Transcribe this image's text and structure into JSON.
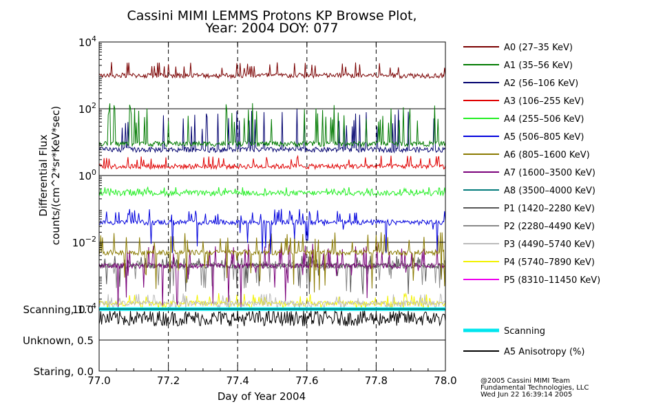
{
  "chart_data": [
    {
      "type": "line",
      "title": "Cassini MIMI LEMMS Protons KP Browse Plot,",
      "subtitle": "Year: 2004 DOY: 077",
      "xlabel": "Day of Year 2004",
      "ylabel": "Differential Flux",
      "ylabel2": "counts/(cm^2*sr*KeV*sec)",
      "y_scale": "log",
      "xlim": [
        77.0,
        78.0
      ],
      "ylim": [
        0.0001,
        10000
      ],
      "x_ticks": [
        "77.0",
        "77.2",
        "77.4",
        "77.6",
        "77.8",
        "78.0"
      ],
      "y_ticks": [
        {
          "base": "10",
          "exp": "4"
        },
        {
          "base": "10",
          "exp": "2"
        },
        {
          "base": "10",
          "exp": "0"
        },
        {
          "base": "10",
          "exp": "−2"
        },
        {
          "base": "10",
          "exp": "−4"
        }
      ],
      "grid": true,
      "legend_position": "right",
      "series": [
        {
          "name": "A0 (27–35 KeV)",
          "color": "#7a0000",
          "baseline": 1000,
          "spike": 2500
        },
        {
          "name": "A1 (35–56 KeV)",
          "color": "#007a00",
          "baseline": 9,
          "spike": 150
        },
        {
          "name": "A2 (56–106 KeV)",
          "color": "#00006e",
          "baseline": 6,
          "spike": 100
        },
        {
          "name": "A3 (106–255 KeV)",
          "color": "#e00000",
          "baseline": 1.9,
          "spike": 4
        },
        {
          "name": "A4 (255–506 KeV)",
          "color": "#22ee22",
          "baseline": 0.3,
          "spike": 0.45
        },
        {
          "name": "A5 (506–805 KeV)",
          "color": "#0000dd",
          "baseline": 0.04,
          "spike": 0.1
        },
        {
          "name": "A6 (805–1600 KeV)",
          "color": "#8a7a00",
          "baseline": 0.005,
          "spike": 0.02
        },
        {
          "name": "A7 (1600–3500 KeV)",
          "color": "#7a007a",
          "baseline": 0.002,
          "spike": 0.01
        },
        {
          "name": "A8 (3500–4000 KeV)",
          "color": "#007a7a",
          "baseline": 0.0001,
          "spike": 0.0001
        },
        {
          "name": "P1 (1420–2280 KeV)",
          "color": "#555555",
          "baseline": 0.002,
          "spike": 0.004
        },
        {
          "name": "P2 (2280–4490 KeV)",
          "color": "#888888",
          "baseline": 0.002,
          "spike": 0.003
        },
        {
          "name": "P3 (4490–5740 KeV)",
          "color": "#bbbbbb",
          "baseline": 0.00015,
          "spike": 0.0003
        },
        {
          "name": "P4 (5740–7890 KeV)",
          "color": "#f2f200",
          "baseline": 0.00015,
          "spike": 0.0003
        },
        {
          "name": "P5 (8310–11450 KeV)",
          "color": "#ee00ee",
          "baseline": 0.0001,
          "spike": 0.0001
        }
      ]
    },
    {
      "type": "line",
      "xlim": [
        77.0,
        78.0
      ],
      "ylim": [
        0.0,
        1.0
      ],
      "y_ticks": [
        "Scanning, 1.0",
        "Unknown, 0.5",
        "Staring, 0.0"
      ],
      "legend_position": "right",
      "series": [
        {
          "name": "Scanning",
          "color": "#00e5ee",
          "value": 1.0
        },
        {
          "name": "A5 Anisotropy (%)",
          "color": "#000000",
          "value": 0.85
        }
      ]
    }
  ],
  "credits": {
    "line1": "@2005 Cassini MIMI Team",
    "line2": "Fundamental Technologies, LLC",
    "line3": "Wed Jun 22 16:39:14 2005"
  }
}
